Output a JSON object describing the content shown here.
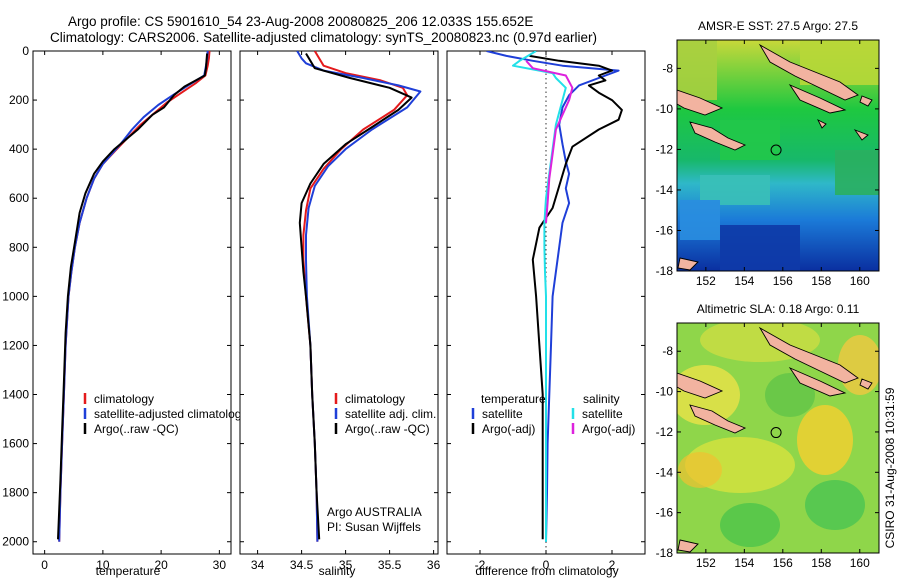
{
  "title_line1": "Argo profile: CS 5901610_54 23-Aug-2008 20080825_206 12.033S 155.652E",
  "title_line2": "Climatology: CARS2006. Satellite-adjusted climatology: synTS_20080823.nc (0.97d earlier)",
  "side_label": "CSIRO 31-Aug-2008 10:31:59",
  "colors": {
    "climatology": "#e41a1c",
    "satellite": "#1f3fd8",
    "argo": "#000000",
    "salinity_satellite": "#22e0e8",
    "salinity_argo": "#dd22dd",
    "land": "#f2b3a0"
  },
  "chart_data": [
    {
      "type": "line",
      "panel": "temperature",
      "xlabel": "temperature",
      "xlim": [
        -2,
        32
      ],
      "xticks": [
        0,
        10,
        20,
        30
      ],
      "ylim": [
        0,
        2050
      ],
      "yticks": [
        0,
        200,
        400,
        600,
        800,
        1000,
        1200,
        1400,
        1600,
        1800,
        2000
      ],
      "y_reversed": true,
      "legend": [
        "climatology",
        "satellite-adjusted climatology",
        "Argo(..raw -QC)"
      ],
      "series": [
        {
          "name": "climatology",
          "color": "climatology",
          "points": [
            [
              28.3,
              0
            ],
            [
              28.2,
              30
            ],
            [
              28.0,
              60
            ],
            [
              27.6,
              100
            ],
            [
              26,
              130
            ],
            [
              23.5,
              170
            ],
            [
              21,
              210
            ],
            [
              18.5,
              260
            ],
            [
              16.5,
              300
            ],
            [
              14,
              360
            ],
            [
              12,
              410
            ],
            [
              10,
              460
            ],
            [
              8.5,
              520
            ],
            [
              7.2,
              600
            ],
            [
              6,
              700
            ],
            [
              5.2,
              800
            ],
            [
              4.6,
              900
            ],
            [
              4.1,
              1000
            ],
            [
              3.6,
              1200
            ],
            [
              3.3,
              1400
            ],
            [
              3.0,
              1600
            ],
            [
              2.7,
              1800
            ],
            [
              2.5,
              2000
            ]
          ]
        },
        {
          "name": "satellite-adjusted climatology",
          "color": "satellite",
          "points": [
            [
              28.0,
              0
            ],
            [
              27.9,
              30
            ],
            [
              27.7,
              60
            ],
            [
              27.4,
              100
            ],
            [
              25,
              135
            ],
            [
              22,
              180
            ],
            [
              19.5,
              220
            ],
            [
              17,
              270
            ],
            [
              15,
              320
            ],
            [
              13,
              380
            ],
            [
              11.5,
              420
            ],
            [
              10,
              460
            ],
            [
              8.5,
              520
            ],
            [
              7.2,
              600
            ],
            [
              6,
              700
            ],
            [
              5.2,
              800
            ],
            [
              4.6,
              900
            ],
            [
              4.1,
              1000
            ],
            [
              3.6,
              1200
            ],
            [
              3.3,
              1400
            ],
            [
              3.0,
              1600
            ],
            [
              2.7,
              1800
            ],
            [
              2.5,
              2000
            ]
          ]
        },
        {
          "name": "Argo(..raw -QC)",
          "color": "argo",
          "points": [
            [
              27.9,
              10
            ],
            [
              27.8,
              40
            ],
            [
              27.7,
              70
            ],
            [
              27.5,
              100
            ],
            [
              24,
              145
            ],
            [
              22.2,
              180
            ],
            [
              20.5,
              230
            ],
            [
              18.5,
              260
            ],
            [
              16,
              320
            ],
            [
              14,
              360
            ],
            [
              12,
              400
            ],
            [
              10,
              450
            ],
            [
              8.5,
              500
            ],
            [
              7,
              580
            ],
            [
              6,
              660
            ],
            [
              5.2,
              780
            ],
            [
              4.5,
              880
            ],
            [
              4.0,
              1000
            ],
            [
              3.6,
              1150
            ],
            [
              3.3,
              1350
            ],
            [
              3.0,
              1550
            ],
            [
              2.7,
              1750
            ],
            [
              2.3,
              1990
            ]
          ]
        }
      ]
    },
    {
      "type": "line",
      "panel": "salinity",
      "xlabel": "salinity",
      "xlim": [
        33.8,
        36.05
      ],
      "xticks": [
        34,
        34.5,
        35,
        35.5,
        36
      ],
      "xtick_labels": [
        "34",
        "34.5",
        "35",
        "35.5",
        "36"
      ],
      "ylim": [
        0,
        2050
      ],
      "y_reversed": true,
      "legend": [
        "climatology",
        "satellite adj. clim.",
        "Argo(..raw -QC)"
      ],
      "annotation": [
        "Argo AUSTRALIA",
        "PI: Susan Wijffels"
      ],
      "series": [
        {
          "name": "climatology",
          "color": "climatology",
          "points": [
            [
              34.65,
              0
            ],
            [
              34.7,
              30
            ],
            [
              34.75,
              60
            ],
            [
              35.0,
              90
            ],
            [
              35.4,
              120
            ],
            [
              35.65,
              150
            ],
            [
              35.7,
              180
            ],
            [
              35.55,
              240
            ],
            [
              35.2,
              320
            ],
            [
              34.95,
              400
            ],
            [
              34.75,
              480
            ],
            [
              34.6,
              560
            ],
            [
              34.55,
              650
            ],
            [
              34.52,
              750
            ],
            [
              34.52,
              850
            ],
            [
              34.55,
              1000
            ],
            [
              34.6,
              1200
            ],
            [
              34.62,
              1400
            ],
            [
              34.65,
              1600
            ],
            [
              34.67,
              1800
            ],
            [
              34.68,
              2000
            ]
          ]
        },
        {
          "name": "satellite adj. clim.",
          "color": "satellite",
          "points": [
            [
              34.45,
              0
            ],
            [
              34.5,
              30
            ],
            [
              34.55,
              50
            ],
            [
              34.75,
              80
            ],
            [
              35.2,
              110
            ],
            [
              35.6,
              140
            ],
            [
              35.85,
              165
            ],
            [
              35.7,
              230
            ],
            [
              35.3,
              320
            ],
            [
              35.0,
              400
            ],
            [
              34.8,
              470
            ],
            [
              34.65,
              550
            ],
            [
              34.58,
              640
            ],
            [
              34.55,
              750
            ],
            [
              34.55,
              850
            ],
            [
              34.56,
              1000
            ],
            [
              34.6,
              1200
            ],
            [
              34.62,
              1400
            ],
            [
              34.65,
              1600
            ],
            [
              34.67,
              1800
            ],
            [
              34.68,
              2000
            ]
          ]
        },
        {
          "name": "Argo(..raw -QC)",
          "color": "argo",
          "points": [
            [
              34.55,
              10
            ],
            [
              34.6,
              40
            ],
            [
              34.65,
              70
            ],
            [
              35.05,
              110
            ],
            [
              35.5,
              150
            ],
            [
              35.75,
              190
            ],
            [
              35.6,
              240
            ],
            [
              35.3,
              310
            ],
            [
              35.0,
              380
            ],
            [
              34.75,
              460
            ],
            [
              34.6,
              540
            ],
            [
              34.5,
              620
            ],
            [
              34.48,
              700
            ],
            [
              34.5,
              800
            ],
            [
              34.52,
              900
            ],
            [
              34.55,
              1000
            ],
            [
              34.6,
              1200
            ],
            [
              34.62,
              1400
            ],
            [
              34.65,
              1600
            ],
            [
              34.67,
              1800
            ],
            [
              34.7,
              1990
            ]
          ]
        }
      ]
    },
    {
      "type": "line",
      "panel": "difference",
      "xlabel": "difference from climatology",
      "xlim": [
        -3,
        3
      ],
      "xticks": [
        -2,
        0,
        2
      ],
      "ylim": [
        0,
        2050
      ],
      "y_reversed": true,
      "legend_temperature_header": "temperature",
      "legend_salinity_header": "salinity",
      "legend_temperature": [
        "satellite",
        "Argo(-adj)"
      ],
      "legend_salinity": [
        "satellite",
        "Argo(-adj)"
      ],
      "series": [
        {
          "name": "temperature satellite",
          "color": "satellite",
          "points": [
            [
              -1.8,
              0
            ],
            [
              -1.2,
              20
            ],
            [
              -0.4,
              40
            ],
            [
              0.5,
              60
            ],
            [
              2.2,
              80
            ],
            [
              1.6,
              110
            ],
            [
              1.0,
              140
            ],
            [
              0.7,
              180
            ],
            [
              0.5,
              230
            ],
            [
              0.4,
              300
            ],
            [
              0.5,
              380
            ],
            [
              0.6,
              450
            ],
            [
              0.7,
              500
            ],
            [
              0.6,
              560
            ],
            [
              0.7,
              620
            ],
            [
              0.5,
              700
            ],
            [
              0.4,
              800
            ],
            [
              0.3,
              900
            ],
            [
              0.2,
              1000
            ],
            [
              0.15,
              1200
            ],
            [
              0.1,
              1400
            ],
            [
              0.05,
              1600
            ],
            [
              0.03,
              1800
            ],
            [
              0.0,
              2000
            ]
          ]
        },
        {
          "name": "temperature Argo(-adj)",
          "color": "argo",
          "points": [
            [
              -0.5,
              20
            ],
            [
              0.4,
              40
            ],
            [
              1.6,
              60
            ],
            [
              2.0,
              80
            ],
            [
              1.6,
              100
            ],
            [
              1.8,
              120
            ],
            [
              1.3,
              140
            ],
            [
              1.6,
              170
            ],
            [
              2.0,
              200
            ],
            [
              2.3,
              240
            ],
            [
              2.2,
              280
            ],
            [
              1.6,
              320
            ],
            [
              0.8,
              390
            ],
            [
              0.6,
              460
            ],
            [
              0.4,
              550
            ],
            [
              0.2,
              640
            ],
            [
              -0.2,
              720
            ],
            [
              -0.4,
              850
            ],
            [
              -0.3,
              1000
            ],
            [
              -0.2,
              1200
            ],
            [
              -0.1,
              1400
            ],
            [
              -0.1,
              1600
            ],
            [
              -0.1,
              1800
            ],
            [
              -0.1,
              1990
            ]
          ]
        },
        {
          "name": "salinity satellite",
          "color": "salinity_satellite",
          "points": [
            [
              -0.3,
              0
            ],
            [
              -0.8,
              40
            ],
            [
              -1.0,
              60
            ],
            [
              0.2,
              90
            ],
            [
              0.3,
              110
            ],
            [
              0.6,
              150
            ],
            [
              0.5,
              200
            ],
            [
              0.3,
              300
            ],
            [
              0.2,
              400
            ],
            [
              0.1,
              500
            ],
            [
              0.0,
              600
            ],
            [
              -0.05,
              700
            ],
            [
              -0.05,
              800
            ],
            [
              -0.03,
              900
            ],
            [
              0.0,
              1000
            ],
            [
              0.0,
              1200
            ],
            [
              0.0,
              1400
            ],
            [
              0.0,
              1600
            ],
            [
              0.0,
              1800
            ],
            [
              0.0,
              2000
            ]
          ]
        },
        {
          "name": "salinity Argo(-adj)",
          "color": "salinity_argo",
          "points": [
            [
              -0.6,
              40
            ],
            [
              -0.4,
              70
            ],
            [
              0.6,
              100
            ],
            [
              0.8,
              150
            ],
            [
              0.7,
              200
            ],
            [
              0.5,
              260
            ],
            [
              0.3,
              320
            ],
            [
              0.2,
              420
            ],
            [
              0.1,
              520
            ],
            [
              0.05,
              620
            ],
            [
              0.0,
              700
            ]
          ]
        }
      ]
    },
    {
      "type": "heatmap",
      "panel": "sst_map",
      "title": "AMSR-E SST: 27.5 Argo: 27.5",
      "xlim": [
        150.5,
        161
      ],
      "ylim": [
        -18,
        -6.6
      ],
      "xticks": [
        152,
        154,
        156,
        158,
        160
      ],
      "yticks": [
        -8,
        -10,
        -12,
        -14,
        -16,
        -18
      ],
      "argo_marker": {
        "lon": 155.65,
        "lat": -12.03
      }
    },
    {
      "type": "heatmap",
      "panel": "sla_map",
      "title": "Altimetric SLA: 0.18 Argo: 0.11",
      "xlim": [
        150.5,
        161
      ],
      "ylim": [
        -18,
        -6.6
      ],
      "xticks": [
        152,
        154,
        156,
        158,
        160
      ],
      "yticks": [
        -8,
        -10,
        -12,
        -14,
        -16,
        -18
      ],
      "argo_marker": {
        "lon": 155.65,
        "lat": -12.03
      }
    }
  ]
}
